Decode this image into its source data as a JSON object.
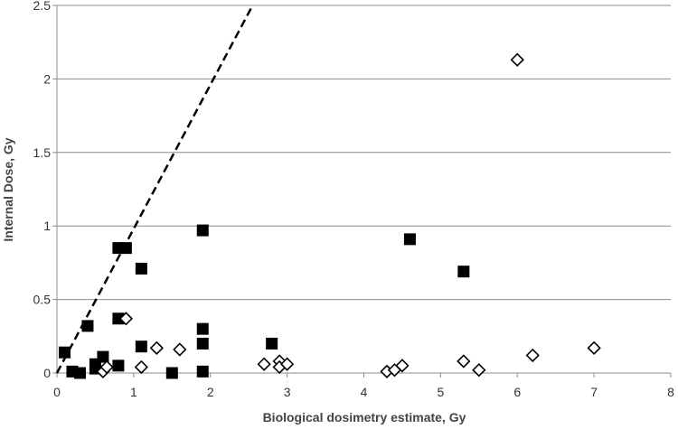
{
  "chart_data": {
    "type": "scatter",
    "title": "",
    "xlabel": "Biological dosimetry estimate, Gy",
    "ylabel": "Internal Dose, Gy",
    "xlim": [
      0,
      8
    ],
    "ylim": [
      0,
      2.5
    ],
    "x_ticks": [
      "0",
      "1",
      "2",
      "3",
      "4",
      "5",
      "6",
      "7",
      "8"
    ],
    "y_ticks": [
      "0",
      "0.5",
      "1",
      "1.5",
      "2",
      "2.5"
    ],
    "grid": "horizontal",
    "legend": "none",
    "reference_line": {
      "style": "dashed",
      "color": "#000000",
      "from": [
        0,
        0
      ],
      "to": [
        2.55,
        2.5
      ]
    },
    "series": [
      {
        "marker": "filled-square",
        "color": "#000000",
        "points": [
          [
            0.1,
            0.14
          ],
          [
            0.2,
            0.01
          ],
          [
            0.3,
            0.0
          ],
          [
            0.4,
            0.32
          ],
          [
            0.5,
            0.06
          ],
          [
            0.5,
            0.03
          ],
          [
            0.6,
            0.11
          ],
          [
            0.8,
            0.85
          ],
          [
            0.9,
            0.85
          ],
          [
            0.8,
            0.37
          ],
          [
            0.8,
            0.05
          ],
          [
            1.1,
            0.71
          ],
          [
            1.1,
            0.18
          ],
          [
            1.5,
            0.0
          ],
          [
            1.9,
            0.97
          ],
          [
            1.9,
            0.3
          ],
          [
            1.9,
            0.2
          ],
          [
            1.9,
            0.01
          ],
          [
            2.8,
            0.2
          ],
          [
            4.6,
            0.91
          ],
          [
            5.3,
            0.69
          ]
        ]
      },
      {
        "marker": "open-diamond",
        "color": "#000000",
        "points": [
          [
            0.6,
            0.01
          ],
          [
            0.65,
            0.04
          ],
          [
            0.9,
            0.37
          ],
          [
            1.1,
            0.04
          ],
          [
            1.3,
            0.17
          ],
          [
            1.6,
            0.16
          ],
          [
            2.7,
            0.06
          ],
          [
            2.9,
            0.08
          ],
          [
            2.9,
            0.04
          ],
          [
            3.0,
            0.06
          ],
          [
            4.3,
            0.01
          ],
          [
            4.4,
            0.02
          ],
          [
            4.5,
            0.05
          ],
          [
            5.3,
            0.08
          ],
          [
            5.5,
            0.02
          ],
          [
            6.0,
            2.13
          ],
          [
            6.2,
            0.12
          ],
          [
            7.0,
            0.17
          ]
        ]
      }
    ]
  }
}
